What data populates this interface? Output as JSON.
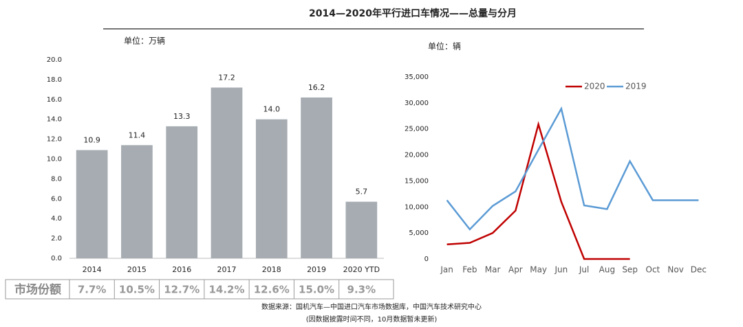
{
  "title": "2014—2020年平行进口车情况——总量与分月",
  "chart_data": [
    {
      "type": "bar",
      "unit": "单位：万辆",
      "categories": [
        "2014",
        "2015",
        "2016",
        "2017",
        "2018",
        "2019",
        "2020 YTD"
      ],
      "values": [
        10.9,
        11.4,
        13.3,
        17.2,
        14.0,
        16.2,
        5.7
      ],
      "value_labels": [
        "10.9",
        "11.4",
        "13.3",
        "17.2",
        "14.0",
        "16.2",
        "5.7"
      ],
      "color": "#a6acb2",
      "ylim": [
        0,
        20
      ],
      "yticks": [
        {
          "value": 0,
          "label": "0.0"
        },
        {
          "value": 2,
          "label": "2.0"
        },
        {
          "value": 4,
          "label": "4.0"
        },
        {
          "value": 6,
          "label": "6.0"
        },
        {
          "value": 8,
          "label": "8.0"
        },
        {
          "value": 10,
          "label": "10.0"
        },
        {
          "value": 12,
          "label": "12.0"
        },
        {
          "value": 14,
          "label": "14.0"
        },
        {
          "value": 16,
          "label": "16.0"
        },
        {
          "value": 18,
          "label": "18.0"
        },
        {
          "value": 20,
          "label": "20.0"
        }
      ],
      "grid": false
    },
    {
      "type": "line",
      "unit": "单位：辆",
      "categories": [
        "Jan",
        "Feb",
        "Mar",
        "Apr",
        "May",
        "Jun",
        "Jul",
        "Aug",
        "Sep",
        "Oct",
        "Nov",
        "Dec"
      ],
      "series": [
        {
          "name": "2020",
          "color": "#c00000",
          "values": [
            2800,
            3100,
            5000,
            9300,
            25900,
            11000,
            0,
            0,
            0,
            null,
            null,
            null
          ]
        },
        {
          "name": "2019",
          "color": "#5b9bd5",
          "values": [
            11300,
            5700,
            10200,
            13000,
            21000,
            28900,
            10300,
            9600,
            18800,
            11300,
            11300,
            11300
          ]
        }
      ],
      "ylim": [
        0,
        35000
      ],
      "yticks": [
        0,
        {
          "value": 5000,
          "label": "5,000"
        },
        {
          "value": 10000,
          "label": "10,000"
        },
        {
          "value": 15000,
          "label": "15,000"
        },
        {
          "value": 20000,
          "label": "20,000"
        },
        {
          "value": 25000,
          "label": "25,000"
        },
        {
          "value": 30000,
          "label": "30,000"
        },
        {
          "value": 35000,
          "label": "35,000"
        }
      ],
      "legend": "top",
      "grid": false
    }
  ],
  "market_share": {
    "label": "市场份额",
    "values": [
      "7.7%",
      "10.5%",
      "12.7%",
      "14.2%",
      "12.6%",
      "15.0%",
      "9.3%"
    ]
  },
  "source": [
    "数据来源：国机汽车—中国进口汽车市场数据库，中国汽车技术研究中心",
    "(因数据披露时间不同，10月数据暂未更新)"
  ]
}
